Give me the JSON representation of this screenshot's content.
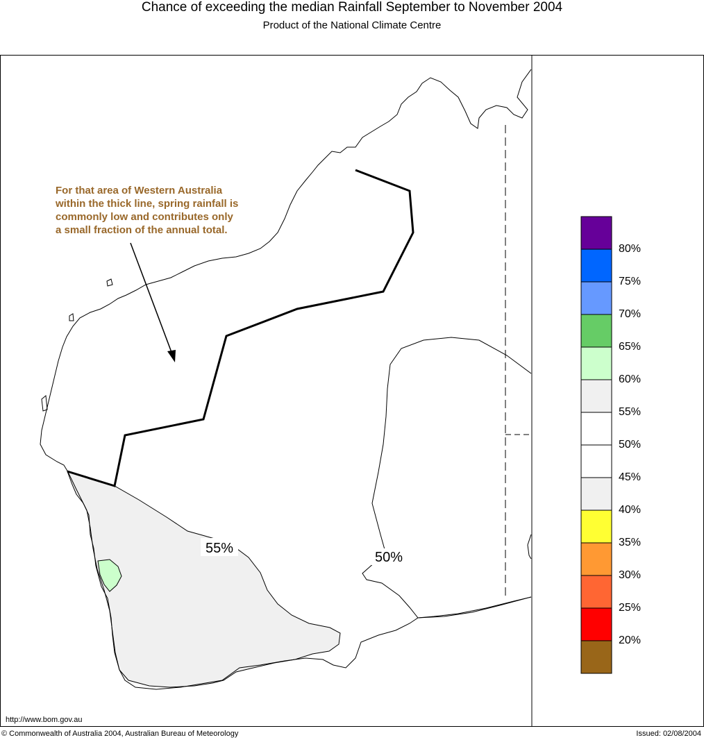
{
  "header": {
    "title": "Chance of exceeding the median Rainfall September to November 2004",
    "subtitle": "Product of the National Climate Centre"
  },
  "map": {
    "annotation_lines": [
      "For that area of Western Australia",
      "within the thick line, spring rainfall is",
      "commonly low and contributes only",
      "a small fraction of the annual total."
    ],
    "contour_labels": [
      "55%",
      "50%"
    ],
    "region_colors": {
      "55_60": "#f0f0f0",
      "60_65": "#ccffcc",
      "coast": "#000000"
    },
    "annotation_color": "#99682a"
  },
  "legend": {
    "bins": [
      {
        "color": "#660099"
      },
      {
        "color": "#0066ff"
      },
      {
        "color": "#6699ff"
      },
      {
        "color": "#66cc66"
      },
      {
        "color": "#ccffcc"
      },
      {
        "color": "#f0f0f0"
      },
      {
        "color": "#ffffff"
      },
      {
        "color": "#ffffff"
      },
      {
        "color": "#f0f0f0"
      },
      {
        "color": "#ffff33"
      },
      {
        "color": "#ff9933"
      },
      {
        "color": "#ff6633"
      },
      {
        "color": "#ff0000"
      },
      {
        "color": "#996619"
      }
    ],
    "labels": [
      "80%",
      "75%",
      "70%",
      "65%",
      "60%",
      "55%",
      "50%",
      "45%",
      "40%",
      "35%",
      "30%",
      "25%",
      "20%"
    ]
  },
  "footer": {
    "url": "http://www.bom.gov.au",
    "copyright": "© Commonwealth of Australia 2004, Australian Bureau of Meteorology",
    "issued": "Issued: 02/08/2004"
  }
}
